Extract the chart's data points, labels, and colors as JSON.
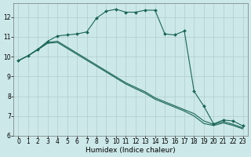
{
  "title": "",
  "xlabel": "Humidex (Indice chaleur)",
  "bg_color": "#cce8e8",
  "grid_color": "#b0cccc",
  "line_color": "#1a6655",
  "xlim": [
    -0.5,
    23.5
  ],
  "ylim": [
    6.0,
    12.7
  ],
  "xticks": [
    0,
    1,
    2,
    3,
    4,
    5,
    6,
    7,
    8,
    9,
    10,
    11,
    12,
    13,
    14,
    15,
    16,
    17,
    18,
    19,
    20,
    21,
    22,
    23
  ],
  "yticks": [
    6,
    7,
    8,
    9,
    10,
    11,
    12
  ],
  "line1_x": [
    0,
    1,
    2,
    3,
    4,
    5,
    6,
    7,
    8,
    9,
    10,
    11,
    12,
    13,
    14,
    15,
    16,
    17,
    18,
    19,
    20,
    21,
    22,
    23
  ],
  "line1_y": [
    9.8,
    10.05,
    10.38,
    10.78,
    11.05,
    11.1,
    11.15,
    11.25,
    11.95,
    12.3,
    12.4,
    12.25,
    12.25,
    12.35,
    12.35,
    11.15,
    11.1,
    11.3,
    8.25,
    7.5,
    6.6,
    6.8,
    6.75,
    6.5
  ],
  "line2_x": [
    0,
    1,
    2,
    3,
    4,
    5,
    6,
    7,
    8,
    9,
    10,
    11,
    12,
    13,
    14,
    15,
    16,
    17,
    18,
    19,
    20,
    21,
    22,
    23
  ],
  "line2_y": [
    9.8,
    10.05,
    10.38,
    10.72,
    10.78,
    10.48,
    10.18,
    9.88,
    9.58,
    9.28,
    8.98,
    8.68,
    8.45,
    8.22,
    7.92,
    7.72,
    7.52,
    7.32,
    7.12,
    6.75,
    6.58,
    6.72,
    6.58,
    6.4
  ],
  "line3_x": [
    0,
    1,
    2,
    3,
    4,
    5,
    6,
    7,
    8,
    9,
    10,
    11,
    12,
    13,
    14,
    15,
    16,
    17,
    18,
    19,
    20,
    21,
    22,
    23
  ],
  "line3_y": [
    9.8,
    10.05,
    10.35,
    10.68,
    10.72,
    10.42,
    10.12,
    9.82,
    9.52,
    9.22,
    8.92,
    8.62,
    8.38,
    8.15,
    7.85,
    7.65,
    7.45,
    7.25,
    7.0,
    6.62,
    6.52,
    6.65,
    6.52,
    6.35
  ],
  "tick_fontsize": 5.5,
  "xlabel_fontsize": 6.5,
  "marker_size": 2.0,
  "line_width": 0.8
}
